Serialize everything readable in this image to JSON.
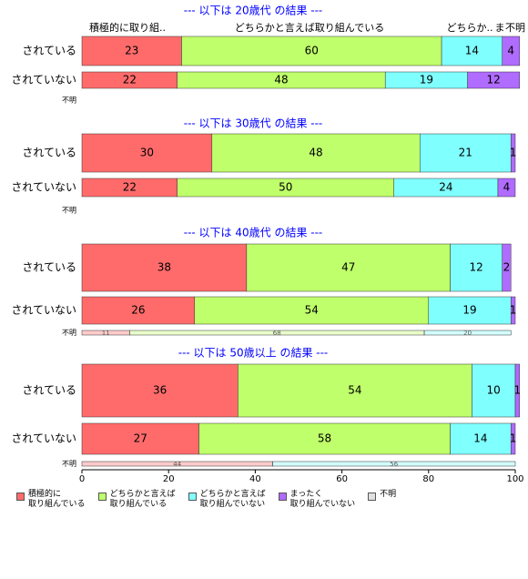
{
  "chart_data": {
    "type": "bar",
    "stacked": true,
    "orientation": "horizontal",
    "categories_order": [
      "積極的に取り組んでいる",
      "どちらかと言えば取り組んでいる",
      "どちらかと言えば取り組んでいない",
      "まったく取り組んでいない",
      "不明"
    ],
    "colors": {
      "積極的に取り組んでいる": "#ff6b6b",
      "どちらかと言えば取り組んでいる": "#bfff6b",
      "どちらかと言えば取り組んでいない": "#80ffff",
      "まったく取り組んでいない": "#b06bff",
      "不明": "#e0e0e0"
    },
    "top_header_labels": [
      "積極的に取り組..",
      "どちらかと言えば取り組んでいる",
      "どちらか..",
      "ま",
      "不明"
    ],
    "panels": [
      {
        "title": "--- 以下は 20歳代 の結果 ---",
        "rows": [
          {
            "label": "されている",
            "values": [
              23,
              60,
              14,
              4,
              0
            ]
          },
          {
            "label": "されていない",
            "values": [
              22,
              48,
              19,
              12,
              0
            ]
          },
          {
            "label": "不明",
            "values": [
              0,
              0,
              0,
              0,
              0
            ]
          }
        ]
      },
      {
        "title": "--- 以下は 30歳代 の結果 ---",
        "rows": [
          {
            "label": "されている",
            "values": [
              30,
              48,
              21,
              1,
              0
            ]
          },
          {
            "label": "されていない",
            "values": [
              22,
              50,
              24,
              4,
              0
            ]
          },
          {
            "label": "不明",
            "values": [
              0,
              0,
              0,
              0,
              0
            ]
          }
        ]
      },
      {
        "title": "--- 以下は 40歳代 の結果 ---",
        "rows": [
          {
            "label": "されている",
            "values": [
              38,
              47,
              12,
              2,
              0
            ]
          },
          {
            "label": "されていない",
            "values": [
              26,
              54,
              19,
              1,
              0
            ]
          },
          {
            "label": "不明",
            "values": [
              11,
              68,
              20,
              0,
              0
            ]
          }
        ]
      },
      {
        "title": "--- 以下は 50歳以上 の結果 ---",
        "rows": [
          {
            "label": "されている",
            "values": [
              36,
              54,
              10,
              1,
              0
            ]
          },
          {
            "label": "されていない",
            "values": [
              27,
              58,
              14,
              1,
              0
            ]
          },
          {
            "label": "不明",
            "values": [
              44,
              0,
              56,
              0,
              0
            ]
          }
        ]
      }
    ],
    "xlim": [
      0,
      100
    ],
    "xticks": [
      0,
      20,
      40,
      60,
      80,
      100
    ],
    "legend": [
      {
        "label": "積極的に\n取り組んでいる",
        "color": "#ff6b6b"
      },
      {
        "label": "どちらかと言えば\n取り組んでいる",
        "color": "#bfff6b"
      },
      {
        "label": "どちらかと言えば\n取り組んでいない",
        "color": "#80ffff"
      },
      {
        "label": "まったく\n取り組んでいない",
        "color": "#b06bff"
      },
      {
        "label": "不明",
        "color": "#e0e0e0"
      }
    ],
    "legend_position": "bottom"
  }
}
